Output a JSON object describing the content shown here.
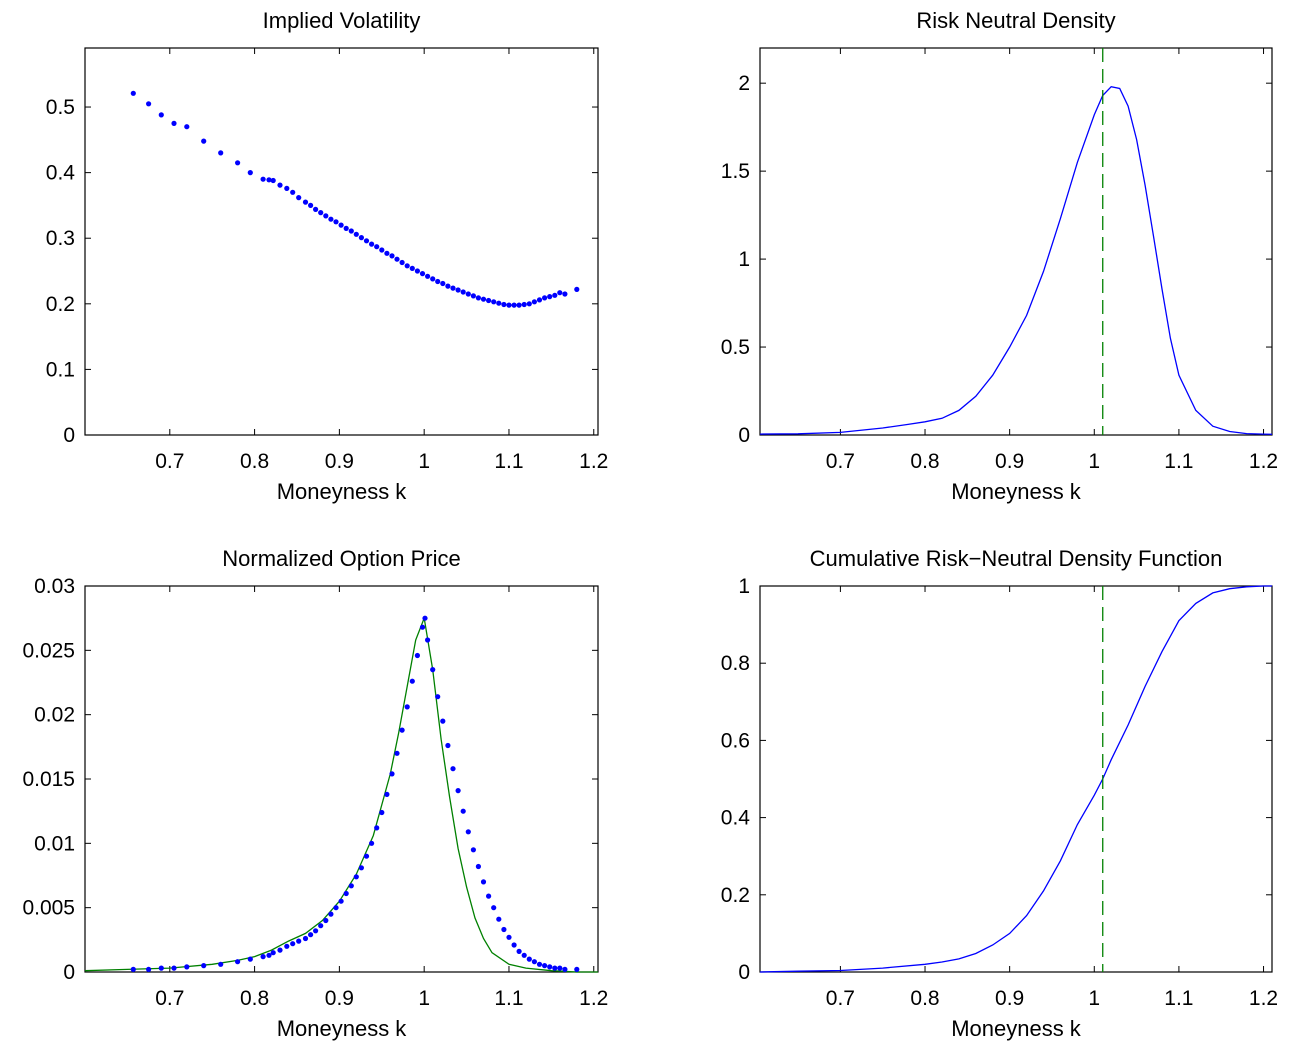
{
  "chart_data": [
    {
      "type": "scatter",
      "title": "Implied Volatility",
      "xlabel": "Moneyness k",
      "ylabel": "",
      "xlim": [
        0.6,
        1.205
      ],
      "ylim": [
        0,
        0.59
      ],
      "xticks": [
        0.7,
        0.8,
        0.9,
        1,
        1.1,
        1.2
      ],
      "yticks": [
        0,
        0.1,
        0.2,
        0.3,
        0.4,
        0.5
      ],
      "grid": false,
      "colors": {
        "points": "#0000ff"
      },
      "series": [
        {
          "style": "points",
          "x": [
            0.657,
            0.675,
            0.69,
            0.705,
            0.72,
            0.74,
            0.76,
            0.78,
            0.795,
            0.81,
            0.817,
            0.822,
            0.83,
            0.838,
            0.845,
            0.852,
            0.86,
            0.866,
            0.872,
            0.878,
            0.884,
            0.89,
            0.896,
            0.902,
            0.908,
            0.914,
            0.92,
            0.926,
            0.932,
            0.938,
            0.944,
            0.95,
            0.956,
            0.962,
            0.968,
            0.974,
            0.98,
            0.986,
            0.992,
            0.998,
            1.004,
            1.01,
            1.016,
            1.022,
            1.028,
            1.034,
            1.04,
            1.046,
            1.052,
            1.058,
            1.064,
            1.07,
            1.076,
            1.082,
            1.088,
            1.094,
            1.1,
            1.106,
            1.112,
            1.118,
            1.124,
            1.13,
            1.136,
            1.142,
            1.148,
            1.154,
            1.16,
            1.166,
            1.18
          ],
          "y": [
            0.521,
            0.505,
            0.488,
            0.475,
            0.47,
            0.448,
            0.43,
            0.415,
            0.4,
            0.39,
            0.389,
            0.388,
            0.381,
            0.376,
            0.37,
            0.362,
            0.355,
            0.35,
            0.344,
            0.339,
            0.334,
            0.329,
            0.325,
            0.32,
            0.315,
            0.311,
            0.306,
            0.301,
            0.296,
            0.291,
            0.287,
            0.282,
            0.277,
            0.273,
            0.268,
            0.263,
            0.258,
            0.254,
            0.25,
            0.246,
            0.242,
            0.238,
            0.234,
            0.231,
            0.227,
            0.224,
            0.221,
            0.218,
            0.215,
            0.212,
            0.209,
            0.207,
            0.205,
            0.203,
            0.201,
            0.199,
            0.198,
            0.198,
            0.198,
            0.199,
            0.2,
            0.203,
            0.206,
            0.209,
            0.211,
            0.213,
            0.217,
            0.215,
            0.222
          ]
        }
      ]
    },
    {
      "type": "line",
      "title": "Risk Neutral Density",
      "xlabel": "Moneyness k",
      "ylabel": "",
      "xlim": [
        0.605,
        1.21
      ],
      "ylim": [
        0,
        2.2
      ],
      "xticks": [
        0.7,
        0.8,
        0.9,
        1,
        1.1,
        1.2
      ],
      "yticks": [
        0,
        0.5,
        1,
        1.5,
        2
      ],
      "grid": false,
      "vline": {
        "x": 1.01,
        "style": "dashed",
        "color": "#008000"
      },
      "colors": {
        "line": "#0000ff"
      },
      "series": [
        {
          "style": "line",
          "x": [
            0.605,
            0.65,
            0.7,
            0.75,
            0.78,
            0.8,
            0.82,
            0.84,
            0.86,
            0.88,
            0.9,
            0.92,
            0.94,
            0.96,
            0.98,
            1.0,
            1.01,
            1.02,
            1.03,
            1.04,
            1.05,
            1.06,
            1.07,
            1.08,
            1.09,
            1.1,
            1.12,
            1.14,
            1.16,
            1.18,
            1.2,
            1.21
          ],
          "y": [
            0.005,
            0.007,
            0.015,
            0.04,
            0.06,
            0.075,
            0.095,
            0.14,
            0.22,
            0.34,
            0.5,
            0.68,
            0.93,
            1.23,
            1.55,
            1.82,
            1.93,
            1.98,
            1.97,
            1.87,
            1.68,
            1.42,
            1.13,
            0.83,
            0.55,
            0.34,
            0.14,
            0.05,
            0.02,
            0.008,
            0.005,
            0.004
          ]
        }
      ]
    },
    {
      "type": "line",
      "title": "Normalized Option Price",
      "xlabel": "Moneyness k",
      "ylabel": "",
      "xlim": [
        0.6,
        1.205
      ],
      "ylim": [
        0,
        0.03
      ],
      "xticks": [
        0.7,
        0.8,
        0.9,
        1,
        1.1,
        1.2
      ],
      "yticks": [
        0,
        0.005,
        0.01,
        0.015,
        0.02,
        0.025,
        0.03
      ],
      "grid": false,
      "colors": {
        "line": "#008000",
        "points": "#0000ff"
      },
      "series": [
        {
          "style": "line",
          "x": [
            0.6,
            0.65,
            0.7,
            0.75,
            0.78,
            0.8,
            0.82,
            0.84,
            0.86,
            0.88,
            0.9,
            0.92,
            0.94,
            0.96,
            0.97,
            0.98,
            0.99,
            1.0,
            1.01,
            1.02,
            1.03,
            1.04,
            1.05,
            1.06,
            1.07,
            1.08,
            1.1,
            1.12,
            1.15,
            1.18,
            1.205
          ],
          "y": [
            0.0001,
            0.0002,
            0.0003,
            0.0006,
            0.0009,
            0.0012,
            0.0017,
            0.0024,
            0.003,
            0.004,
            0.0055,
            0.0076,
            0.0106,
            0.0154,
            0.0186,
            0.0222,
            0.0258,
            0.0275,
            0.0235,
            0.0181,
            0.0136,
            0.0096,
            0.0066,
            0.0042,
            0.0026,
            0.0015,
            0.0006,
            0.0003,
            0.0001,
            0.0,
            0.0
          ]
        },
        {
          "style": "points",
          "x": [
            0.657,
            0.675,
            0.69,
            0.705,
            0.72,
            0.74,
            0.76,
            0.78,
            0.795,
            0.81,
            0.817,
            0.822,
            0.83,
            0.838,
            0.845,
            0.852,
            0.86,
            0.866,
            0.872,
            0.878,
            0.884,
            0.89,
            0.896,
            0.902,
            0.908,
            0.914,
            0.92,
            0.926,
            0.932,
            0.938,
            0.944,
            0.95,
            0.956,
            0.962,
            0.968,
            0.974,
            0.98,
            0.986,
            0.992,
            0.998,
            1.001,
            1.004,
            1.01,
            1.016,
            1.022,
            1.028,
            1.034,
            1.04,
            1.046,
            1.052,
            1.058,
            1.064,
            1.07,
            1.076,
            1.082,
            1.088,
            1.094,
            1.1,
            1.106,
            1.112,
            1.118,
            1.124,
            1.13,
            1.136,
            1.142,
            1.148,
            1.154,
            1.16,
            1.166,
            1.18
          ],
          "y": [
            0.0002,
            0.0002,
            0.0003,
            0.0003,
            0.0004,
            0.0005,
            0.0006,
            0.0008,
            0.001,
            0.0012,
            0.0013,
            0.0015,
            0.0017,
            0.002,
            0.0022,
            0.0024,
            0.0026,
            0.0029,
            0.0032,
            0.0036,
            0.004,
            0.0045,
            0.005,
            0.0055,
            0.0061,
            0.0067,
            0.0074,
            0.0081,
            0.009,
            0.01,
            0.0112,
            0.0124,
            0.0138,
            0.0154,
            0.017,
            0.0188,
            0.0206,
            0.0226,
            0.0246,
            0.0268,
            0.0275,
            0.0258,
            0.0235,
            0.0214,
            0.0195,
            0.0176,
            0.0158,
            0.0141,
            0.0125,
            0.0109,
            0.0095,
            0.0082,
            0.007,
            0.0059,
            0.005,
            0.0041,
            0.0033,
            0.0027,
            0.0021,
            0.0016,
            0.0013,
            0.001,
            0.0008,
            0.0006,
            0.0005,
            0.0004,
            0.0003,
            0.0003,
            0.0002,
            0.0002
          ]
        }
      ]
    },
    {
      "type": "line",
      "title": "Cumulative Risk−Neutral Density Function",
      "xlabel": "Moneyness k",
      "ylabel": "",
      "xlim": [
        0.605,
        1.21
      ],
      "ylim": [
        0,
        1
      ],
      "xticks": [
        0.7,
        0.8,
        0.9,
        1,
        1.1,
        1.2
      ],
      "yticks": [
        0,
        0.2,
        0.4,
        0.6,
        0.8,
        1
      ],
      "grid": false,
      "vline": {
        "x": 1.01,
        "style": "dashed",
        "color": "#008000"
      },
      "colors": {
        "line": "#0000ff"
      },
      "series": [
        {
          "style": "line",
          "x": [
            0.605,
            0.65,
            0.7,
            0.75,
            0.8,
            0.82,
            0.84,
            0.86,
            0.88,
            0.9,
            0.92,
            0.94,
            0.96,
            0.98,
            1.0,
            1.01,
            1.02,
            1.04,
            1.06,
            1.08,
            1.1,
            1.12,
            1.14,
            1.16,
            1.18,
            1.2,
            1.21
          ],
          "y": [
            0.0,
            0.002,
            0.004,
            0.01,
            0.02,
            0.026,
            0.034,
            0.048,
            0.07,
            0.1,
            0.146,
            0.21,
            0.288,
            0.382,
            0.458,
            0.5,
            0.55,
            0.64,
            0.74,
            0.83,
            0.91,
            0.955,
            0.982,
            0.993,
            0.998,
            1.0,
            1.0
          ]
        }
      ]
    }
  ]
}
